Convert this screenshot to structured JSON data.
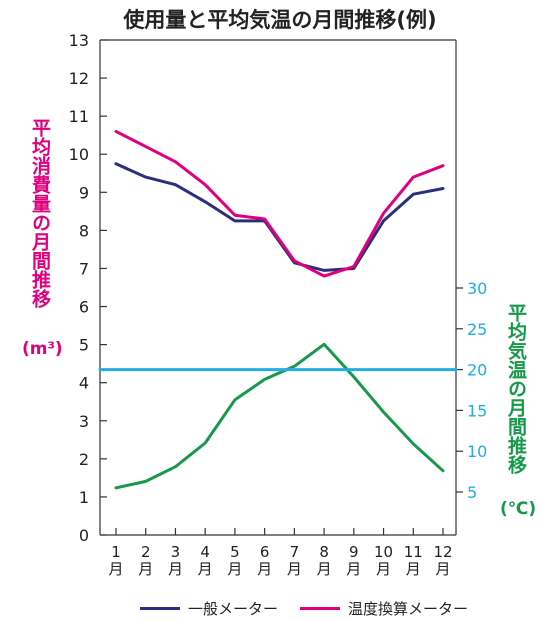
{
  "chart_data": {
    "type": "line",
    "title": "使用量と平均気温の月間推移(例)",
    "categories": [
      "1\n月",
      "2\n月",
      "3\n月",
      "4\n月",
      "5\n月",
      "6\n月",
      "7\n月",
      "8\n月",
      "9\n月",
      "10\n月",
      "11\n月",
      "12\n月"
    ],
    "ylabel": "平均消費量の月間推移",
    "yunit": "(m³)",
    "ylim": [
      0,
      13
    ],
    "yticks": [
      "0",
      "1",
      "2",
      "3",
      "4",
      "5",
      "6",
      "7",
      "8",
      "9",
      "10",
      "11",
      "12",
      "13"
    ],
    "y2label": "平均気温の月間推移",
    "y2unit": "(℃)",
    "y2ticks": [
      "5",
      "10",
      "15",
      "20",
      "25",
      "30"
    ],
    "series": [
      {
        "name": "一般メーター",
        "axis": "left",
        "color": "#2b2e7c",
        "values": [
          9.75,
          9.4,
          9.2,
          8.75,
          8.25,
          8.25,
          7.15,
          6.95,
          7.0,
          8.25,
          8.95,
          9.1
        ]
      },
      {
        "name": "温度換算メーター",
        "axis": "left",
        "color": "#e0007f",
        "values": [
          10.6,
          10.2,
          9.8,
          9.2,
          8.4,
          8.3,
          7.2,
          6.8,
          7.05,
          8.45,
          9.4,
          9.7
        ]
      },
      {
        "name": "",
        "axis": "right",
        "color": "#16994a",
        "values": [
          5.5,
          6.3,
          8.1,
          11.0,
          16.3,
          18.8,
          20.4,
          23.1,
          19.1,
          14.8,
          10.9,
          7.6
        ]
      },
      {
        "name": "",
        "axis": "right",
        "color": "#22aee3",
        "values": [
          20,
          20,
          20,
          20,
          20,
          20,
          20,
          20,
          20,
          20,
          20,
          20
        ]
      }
    ],
    "colors": {
      "left_axis_label": "#e0007f",
      "right_axis_label": "#16994a",
      "right_ticks": "#22aee3"
    }
  }
}
